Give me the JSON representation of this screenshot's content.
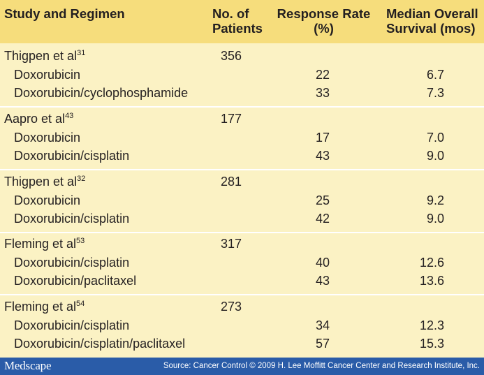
{
  "header": {
    "study": "Study and Regimen",
    "patients_line1": "No. of",
    "patients_line2": "Patients",
    "response_line1": "Response Rate",
    "response_line2": "(%)",
    "survival_line1": "Median Overall",
    "survival_line2": "Survival (mos)"
  },
  "studies": [
    {
      "name": "Thigpen et al",
      "ref": "31",
      "patients": "356",
      "regimens": [
        {
          "name": "Doxorubicin",
          "response": "22",
          "survival": "6.7"
        },
        {
          "name": "Doxorubicin/cyclophosphamide",
          "response": "33",
          "survival": "7.3"
        }
      ]
    },
    {
      "name": "Aapro et al",
      "ref": "43",
      "patients": "177",
      "regimens": [
        {
          "name": "Doxorubicin",
          "response": "17",
          "survival": "7.0"
        },
        {
          "name": "Doxorubicin/cisplatin",
          "response": "43",
          "survival": "9.0"
        }
      ]
    },
    {
      "name": "Thigpen et al",
      "ref": "32",
      "patients": "281",
      "regimens": [
        {
          "name": "Doxorubicin",
          "response": "25",
          "survival": "9.2"
        },
        {
          "name": "Doxorubicin/cisplatin",
          "response": "42",
          "survival": "9.0"
        }
      ]
    },
    {
      "name": "Fleming et al",
      "ref": "53",
      "patients": "317",
      "regimens": [
        {
          "name": "Doxorubicin/cisplatin",
          "response": "40",
          "survival": "12.6"
        },
        {
          "name": "Doxorubicin/paclitaxel",
          "response": "43",
          "survival": "13.6"
        }
      ]
    },
    {
      "name": "Fleming et al",
      "ref": "54",
      "patients": "273",
      "regimens": [
        {
          "name": "Doxorubicin/cisplatin",
          "response": "34",
          "survival": "12.3"
        },
        {
          "name": "Doxorubicin/cisplatin/paclitaxel",
          "response": "57",
          "survival": "15.3"
        }
      ]
    }
  ],
  "footer": {
    "logo": "Medscape",
    "source": "Source: Cancer Control © 2009 H. Lee Moffitt Cancer Center and Research Institute, Inc."
  },
  "colors": {
    "header_bg": "#f6dd7c",
    "body_bg": "#fbf2c4",
    "footer_bg": "#2a5ca8"
  }
}
